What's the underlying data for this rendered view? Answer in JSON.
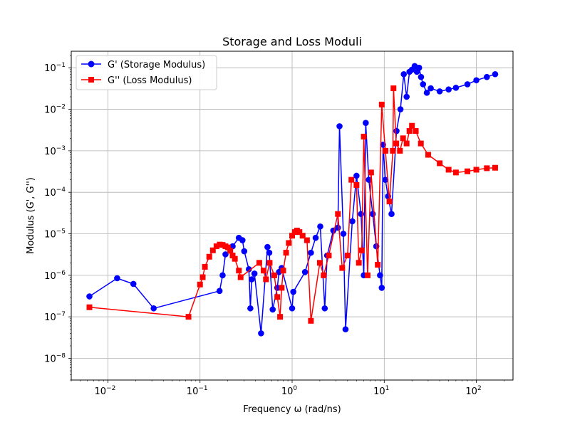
{
  "chart_data": {
    "type": "line",
    "title": "Storage and Loss Moduli",
    "xlabel": "Frequency ω (rad/ns)",
    "ylabel": "Modulus (G', G'')",
    "xscale": "log",
    "yscale": "log",
    "xlim": [
      0.004,
      250
    ],
    "ylim": [
      3e-09,
      0.25
    ],
    "grid": true,
    "legend_position": "upper-left",
    "x_ticks": [
      {
        "value": 0.01,
        "base": "10",
        "exp": "−2"
      },
      {
        "value": 0.1,
        "base": "10",
        "exp": "−1"
      },
      {
        "value": 1,
        "base": "10",
        "exp": "0"
      },
      {
        "value": 10,
        "base": "10",
        "exp": "1"
      },
      {
        "value": 100,
        "base": "10",
        "exp": "2"
      }
    ],
    "y_ticks": [
      {
        "value": 1e-08,
        "base": "10",
        "exp": "−8"
      },
      {
        "value": 1e-07,
        "base": "10",
        "exp": "−7"
      },
      {
        "value": 1e-06,
        "base": "10",
        "exp": "−6"
      },
      {
        "value": 1e-05,
        "base": "10",
        "exp": "−5"
      },
      {
        "value": 0.0001,
        "base": "10",
        "exp": "−4"
      },
      {
        "value": 0.001,
        "base": "10",
        "exp": "−3"
      },
      {
        "value": 0.01,
        "base": "10",
        "exp": "−2"
      },
      {
        "value": 0.1,
        "base": "10",
        "exp": "−1"
      }
    ],
    "series": [
      {
        "name": "G' (Storage Modulus)",
        "color": "#0000ff",
        "marker": "circle",
        "points": [
          [
            0.0063,
            3.1e-07
          ],
          [
            0.0126,
            8.5e-07
          ],
          [
            0.0189,
            6.2e-07
          ],
          [
            0.0314,
            1.6e-07
          ],
          [
            0.163,
            4.2e-07
          ],
          [
            0.176,
            1e-06
          ],
          [
            0.189,
            3.2e-06
          ],
          [
            0.226,
            5e-06
          ],
          [
            0.264,
            8e-06
          ],
          [
            0.289,
            7e-06
          ],
          [
            0.302,
            3.8e-06
          ],
          [
            0.339,
            1.4e-06
          ],
          [
            0.352,
            1.6e-07
          ],
          [
            0.364,
            8e-07
          ],
          [
            0.39,
            1.1e-06
          ],
          [
            0.46,
            4e-08
          ],
          [
            0.54,
            4.8e-06
          ],
          [
            0.565,
            3.5e-06
          ],
          [
            0.615,
            1.5e-07
          ],
          [
            0.69,
            5e-07
          ],
          [
            0.72,
            1.2e-06
          ],
          [
            0.77,
            1.5e-06
          ],
          [
            1.0,
            1.6e-07
          ],
          [
            1.03,
            4e-07
          ],
          [
            1.38,
            1.2e-06
          ],
          [
            1.6,
            3.5e-06
          ],
          [
            1.8,
            8e-06
          ],
          [
            2.02,
            1.5e-05
          ],
          [
            2.26,
            1.6e-07
          ],
          [
            2.4,
            3e-06
          ],
          [
            2.8,
            1.2e-05
          ],
          [
            3.14,
            1.4e-05
          ],
          [
            3.27,
            0.0039
          ],
          [
            3.6,
            1e-05
          ],
          [
            3.8,
            5e-08
          ],
          [
            4.5,
            2e-05
          ],
          [
            5.0,
            0.00025
          ],
          [
            5.6,
            3e-05
          ],
          [
            6.0,
            1e-06
          ],
          [
            6.3,
            0.0047
          ],
          [
            6.8,
            0.0002
          ],
          [
            7.5,
            3e-05
          ],
          [
            8.2,
            5e-06
          ],
          [
            9.0,
            1e-06
          ],
          [
            9.4,
            5e-07
          ],
          [
            9.7,
            0.0014
          ],
          [
            10.3,
            0.0002
          ],
          [
            11.0,
            8e-05
          ],
          [
            12.0,
            3e-05
          ],
          [
            13.6,
            0.003
          ],
          [
            15.0,
            0.01
          ],
          [
            16.3,
            0.07
          ],
          [
            17.5,
            0.02
          ],
          [
            18.8,
            0.08
          ],
          [
            20.0,
            0.09
          ],
          [
            21.4,
            0.11
          ],
          [
            22.6,
            0.08
          ],
          [
            23.9,
            0.1
          ],
          [
            25.1,
            0.06
          ],
          [
            26.4,
            0.04
          ],
          [
            29.0,
            0.025
          ],
          [
            32.0,
            0.032
          ],
          [
            40.0,
            0.027
          ],
          [
            50.0,
            0.03
          ],
          [
            60.0,
            0.033
          ],
          [
            80.0,
            0.04
          ],
          [
            100.0,
            0.05
          ],
          [
            130.0,
            0.06
          ],
          [
            160.0,
            0.07
          ]
        ]
      },
      {
        "name": "G'' (Loss Modulus)",
        "color": "#ff0000",
        "marker": "square",
        "points": [
          [
            0.0063,
            1.7e-07
          ],
          [
            0.075,
            1e-07
          ],
          [
            0.1,
            6e-07
          ],
          [
            0.107,
            9e-07
          ],
          [
            0.113,
            1.6e-06
          ],
          [
            0.126,
            2.8e-06
          ],
          [
            0.138,
            4e-06
          ],
          [
            0.151,
            5e-06
          ],
          [
            0.164,
            5.5e-06
          ],
          [
            0.176,
            5.4e-06
          ],
          [
            0.189,
            5e-06
          ],
          [
            0.201,
            4.7e-06
          ],
          [
            0.213,
            3.9e-06
          ],
          [
            0.226,
            3e-06
          ],
          [
            0.239,
            2.5e-06
          ],
          [
            0.264,
            1.3e-06
          ],
          [
            0.276,
            9e-07
          ],
          [
            0.44,
            2e-06
          ],
          [
            0.49,
            1.3e-06
          ],
          [
            0.52,
            8e-07
          ],
          [
            0.57,
            2e-06
          ],
          [
            0.64,
            1e-06
          ],
          [
            0.69,
            3e-07
          ],
          [
            0.74,
            1e-07
          ],
          [
            0.77,
            5e-07
          ],
          [
            0.8,
            1.3e-06
          ],
          [
            0.86,
            3.5e-06
          ],
          [
            0.92,
            6e-06
          ],
          [
            1.0,
            9e-06
          ],
          [
            1.07,
            1.1e-05
          ],
          [
            1.13,
            1.2e-05
          ],
          [
            1.2,
            1.1e-05
          ],
          [
            1.3,
            9e-06
          ],
          [
            1.45,
            7e-06
          ],
          [
            1.6,
            8e-08
          ],
          [
            2.0,
            2e-06
          ],
          [
            2.2,
            1e-06
          ],
          [
            2.5,
            3e-06
          ],
          [
            3.14,
            3e-05
          ],
          [
            3.5,
            1.5e-06
          ],
          [
            4.0,
            3e-06
          ],
          [
            4.4,
            0.0002
          ],
          [
            5.0,
            0.00015
          ],
          [
            5.3,
            2e-06
          ],
          [
            5.7,
            4e-06
          ],
          [
            6.0,
            0.0022
          ],
          [
            6.6,
            1e-06
          ],
          [
            7.2,
            0.0003
          ],
          [
            8.5,
            1.8e-06
          ],
          [
            9.4,
            0.013
          ],
          [
            10.3,
            0.001
          ],
          [
            11.4,
            6e-05
          ],
          [
            12.4,
            0.001
          ],
          [
            12.6,
            0.032
          ],
          [
            13.5,
            0.0015
          ],
          [
            14.8,
            0.001
          ],
          [
            16.0,
            0.002
          ],
          [
            17.5,
            0.0015
          ],
          [
            18.8,
            0.003
          ],
          [
            20.0,
            0.004
          ],
          [
            22.0,
            0.003
          ],
          [
            25.0,
            0.0015
          ],
          [
            30.0,
            0.0008
          ],
          [
            40.0,
            0.0005
          ],
          [
            50.0,
            0.00035
          ],
          [
            60.0,
            0.0003
          ],
          [
            80.0,
            0.00032
          ],
          [
            100.0,
            0.00035
          ],
          [
            130.0,
            0.00038
          ],
          [
            160.0,
            0.00039
          ]
        ]
      }
    ]
  }
}
